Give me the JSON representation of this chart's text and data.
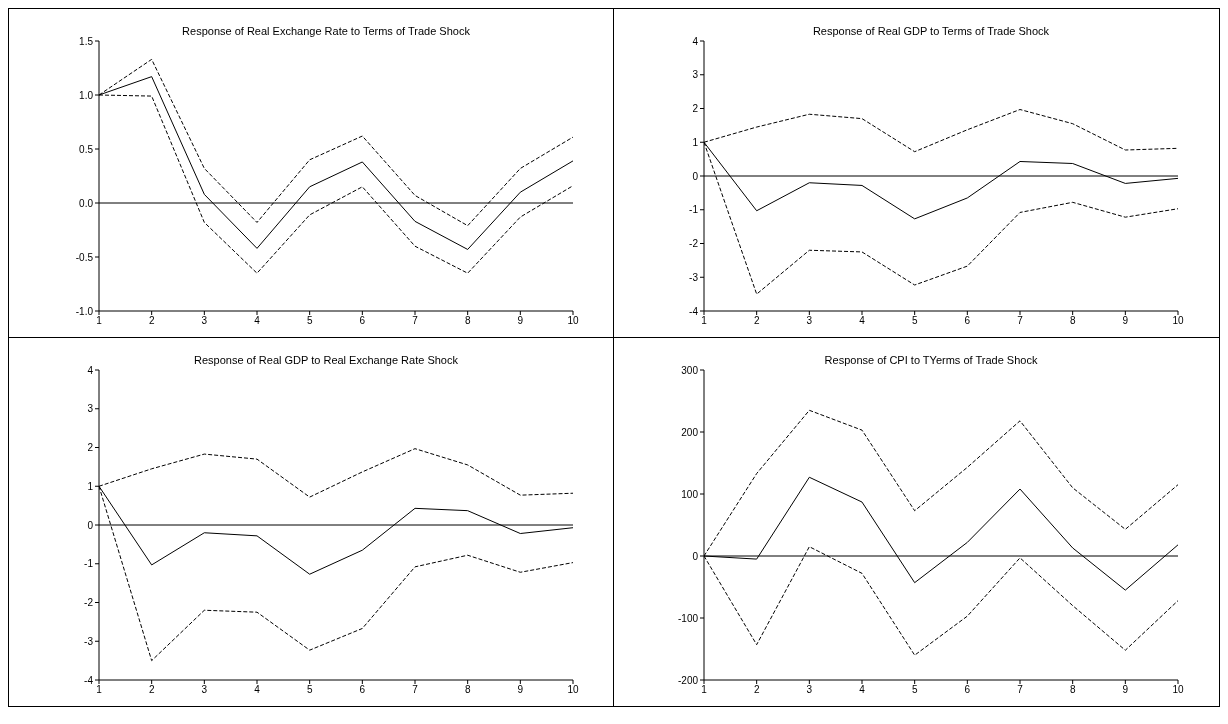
{
  "chart_data": [
    {
      "type": "line",
      "title": "Response of Real Exchange Rate to Terms of Trade Shock",
      "x": [
        1,
        2,
        3,
        4,
        5,
        6,
        7,
        8,
        9,
        10
      ],
      "xlim": [
        1,
        10
      ],
      "xticks": [
        1,
        2,
        3,
        4,
        5,
        6,
        7,
        8,
        9,
        10
      ],
      "ylim": [
        -1,
        1.5
      ],
      "yticks": [
        {
          "value": -1,
          "label": "-1.0"
        },
        -0.5,
        {
          "value": 0,
          "label": "0.0"
        },
        0.5,
        {
          "value": 1,
          "label": "1.0"
        },
        1.5
      ],
      "ref_lines": [
        {
          "axis": "y",
          "value": 0,
          "color": "#000000",
          "line_style": "solid"
        }
      ],
      "series": [
        {
          "color": "#000000",
          "line_style": "solid",
          "values": [
            1.0,
            1.17,
            0.08,
            -0.42,
            0.15,
            0.38,
            -0.17,
            -0.43,
            0.1,
            0.39
          ]
        },
        {
          "color": "#000000",
          "line_style": "dashed",
          "values": [
            1.0,
            1.33,
            0.32,
            -0.18,
            0.4,
            0.62,
            0.07,
            -0.21,
            0.32,
            0.61
          ]
        },
        {
          "color": "#000000",
          "line_style": "dashed",
          "values": [
            1.0,
            0.99,
            -0.18,
            -0.65,
            -0.11,
            0.15,
            -0.4,
            -0.65,
            -0.13,
            0.16
          ]
        }
      ]
    },
    {
      "type": "line",
      "title": "Response of Real GDP to Terms of Trade Shock",
      "x": [
        1,
        2,
        3,
        4,
        5,
        6,
        7,
        8,
        9,
        10
      ],
      "xlim": [
        1,
        10
      ],
      "xticks": [
        1,
        2,
        3,
        4,
        5,
        6,
        7,
        8,
        9,
        10
      ],
      "ylim": [
        -4,
        4
      ],
      "yticks": [
        -4,
        -3,
        -2,
        -1,
        0,
        1,
        2,
        3,
        4
      ],
      "ref_lines": [
        {
          "axis": "y",
          "value": 0,
          "color": "#000000",
          "line_style": "solid"
        }
      ],
      "series": [
        {
          "color": "#000000",
          "line_style": "solid",
          "values": [
            1,
            -1.03,
            -0.2,
            -0.28,
            -1.27,
            -0.65,
            0.43,
            0.37,
            -0.22,
            -0.07
          ]
        },
        {
          "color": "#000000",
          "line_style": "dashed",
          "values": [
            1,
            1.45,
            1.83,
            1.7,
            0.72,
            1.37,
            1.97,
            1.55,
            0.77,
            0.82
          ]
        },
        {
          "color": "#000000",
          "line_style": "dashed",
          "values": [
            1,
            -3.5,
            -2.2,
            -2.25,
            -3.23,
            -2.67,
            -1.08,
            -0.78,
            -1.22,
            -0.97
          ]
        }
      ]
    },
    {
      "type": "line",
      "title": "Response of Real GDP to Real Exchange Rate Shock",
      "x": [
        1,
        2,
        3,
        4,
        5,
        6,
        7,
        8,
        9,
        10
      ],
      "xlim": [
        1,
        10
      ],
      "xticks": [
        1,
        2,
        3,
        4,
        5,
        6,
        7,
        8,
        9,
        10
      ],
      "ylim": [
        -4,
        4
      ],
      "yticks": [
        -4,
        -3,
        -2,
        -1,
        0,
        1,
        2,
        3,
        4
      ],
      "ref_lines": [
        {
          "axis": "y",
          "value": 0,
          "color": "#000000",
          "line_style": "solid"
        }
      ],
      "series": [
        {
          "color": "#000000",
          "line_style": "solid",
          "values": [
            1,
            -1.03,
            -0.2,
            -0.28,
            -1.27,
            -0.65,
            0.43,
            0.37,
            -0.22,
            -0.07
          ]
        },
        {
          "color": "#000000",
          "line_style": "dashed",
          "values": [
            1,
            1.45,
            1.83,
            1.7,
            0.72,
            1.37,
            1.97,
            1.55,
            0.77,
            0.82
          ]
        },
        {
          "color": "#000000",
          "line_style": "dashed",
          "values": [
            1,
            -3.5,
            -2.2,
            -2.25,
            -3.23,
            -2.67,
            -1.08,
            -0.78,
            -1.22,
            -0.97
          ]
        }
      ]
    },
    {
      "type": "line",
      "title": "Response of CPI to TYerms of Trade Shock",
      "x": [
        1,
        2,
        3,
        4,
        5,
        6,
        7,
        8,
        9,
        10
      ],
      "xlim": [
        1,
        10
      ],
      "xticks": [
        1,
        2,
        3,
        4,
        5,
        6,
        7,
        8,
        9,
        10
      ],
      "ylim": [
        -200,
        300
      ],
      "yticks": [
        -200,
        -100,
        0,
        100,
        200,
        300
      ],
      "ref_lines": [
        {
          "axis": "y",
          "value": 0,
          "color": "#000000",
          "line_style": "solid"
        }
      ],
      "series": [
        {
          "color": "#000000",
          "line_style": "solid",
          "values": [
            0,
            -5,
            127,
            87,
            -43,
            22,
            108,
            13,
            -55,
            18
          ]
        },
        {
          "color": "#000000",
          "line_style": "dashed",
          "values": [
            0,
            133,
            235,
            203,
            73,
            143,
            218,
            110,
            43,
            115
          ]
        },
        {
          "color": "#000000",
          "line_style": "dashed",
          "values": [
            0,
            -143,
            15,
            -28,
            -160,
            -97,
            -3,
            -80,
            -152,
            -72
          ]
        }
      ]
    }
  ]
}
